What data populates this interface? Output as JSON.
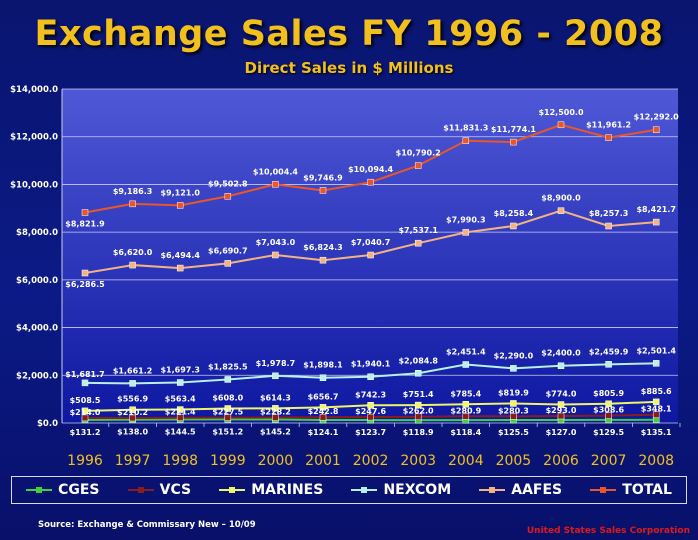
{
  "header": {
    "title": "Exchange Sales FY 1996 - 2008",
    "subtitle": "Direct Sales in $ Millions"
  },
  "footer": {
    "source": "Source: Exchange  & Commissary New – 10/09",
    "company": "United States Sales Corporation"
  },
  "chart_data": {
    "type": "line",
    "categories": [
      "1996",
      "1997",
      "1998",
      "1999",
      "2000",
      "2001",
      "2002",
      "2003",
      "2004",
      "2005",
      "2006",
      "2007",
      "2008"
    ],
    "ylim": [
      0,
      14000
    ],
    "y_ticks": [
      "$0.0",
      "$2,000.0",
      "$4,000.0",
      "$6,000.0",
      "$8,000.0",
      "$10,000.0",
      "$12,000.0",
      "$14,000.0"
    ],
    "grid": true,
    "legend_position": "bottom",
    "series": [
      {
        "name": "CGES",
        "color": "#3fd13f",
        "values": [
          131.2,
          138.0,
          144.5,
          151.2,
          145.2,
          124.1,
          123.7,
          118.9,
          118.4,
          125.5,
          127.0,
          129.5,
          135.1
        ],
        "labels": [
          "$131.2",
          "$138.0",
          "$144.5",
          "$151.2",
          "$145.2",
          "$124.1",
          "$123.7",
          "$118.9",
          "$118.4",
          "$125.5",
          "$127.0",
          "$129.5",
          "$135.1"
        ]
      },
      {
        "name": "VCS",
        "color": "#8b1c1c",
        "values": [
          214.0,
          210.2,
          221.4,
          227.5,
          228.2,
          242.8,
          247.6,
          262.0,
          280.9,
          280.3,
          293.0,
          308.6,
          348.1
        ],
        "labels": [
          "$214.0",
          "$210.2",
          "$221.4",
          "$227.5",
          "$228.2",
          "$242.8",
          "$247.6",
          "$262.0",
          "$280.9",
          "$280.3",
          "$293.0",
          "$308.6",
          "$348.1"
        ]
      },
      {
        "name": "MARINES",
        "color": "#eef56a",
        "values": [
          508.5,
          556.9,
          563.4,
          608.0,
          614.3,
          656.7,
          742.3,
          751.4,
          785.4,
          819.9,
          774.0,
          805.9,
          885.6
        ],
        "labels": [
          "$508.5",
          "$556.9",
          "$563.4",
          "$608.0",
          "$614.3",
          "$656.7",
          "$742.3",
          "$751.4",
          "$785.4",
          "$819.9",
          "$774.0",
          "$805.9",
          "$885.6"
        ]
      },
      {
        "name": "NEXCOM",
        "color": "#b8f0ec",
        "values": [
          1681.7,
          1661.2,
          1697.3,
          1825.5,
          1978.7,
          1898.1,
          1940.1,
          2084.8,
          2451.4,
          2290.0,
          2400.0,
          2459.9,
          2501.4
        ],
        "labels": [
          "$1,681.7",
          "$1,661.2",
          "$1,697.3",
          "$1,825.5",
          "$1,978.7",
          "$1,898.1",
          "$1,940.1",
          "$2,084.8",
          "$2,451.4",
          "$2,290.0",
          "$2,400.0",
          "$2,459.9",
          "$2,501.4"
        ]
      },
      {
        "name": "AAFES",
        "color": "#f4b183",
        "values": [
          6286.5,
          6620.0,
          6494.4,
          6690.7,
          7043.0,
          6824.3,
          7040.7,
          7537.1,
          7990.3,
          8258.4,
          8900.0,
          8257.3,
          8421.7
        ],
        "labels": [
          "$6,286.5",
          "$6,620.0",
          "$6,494.4",
          "$6,690.7",
          "$7,043.0",
          "$6,824.3",
          "$7,040.7",
          "$7,537.1",
          "$7,990.3",
          "$8,258.4",
          "$8,900.0",
          "$8,257.3",
          "$8,421.7"
        ]
      },
      {
        "name": "TOTAL",
        "color": "#e8562a",
        "values": [
          8821.9,
          9186.3,
          9121.0,
          9502.8,
          10004.4,
          9746.9,
          10094.4,
          10790.2,
          11831.3,
          11774.1,
          12500.0,
          11961.2,
          12292.0
        ],
        "labels": [
          "$8,821.9",
          "$9,186.3",
          "$9,121.0",
          "$9,502.8",
          "$10,004.4",
          "$9,746.9",
          "$10,094.4",
          "$10,790.2",
          "$11,831.3",
          "$11,774.1",
          "$12,500.0",
          "$11,961.2",
          "$12,292.0"
        ]
      }
    ]
  }
}
